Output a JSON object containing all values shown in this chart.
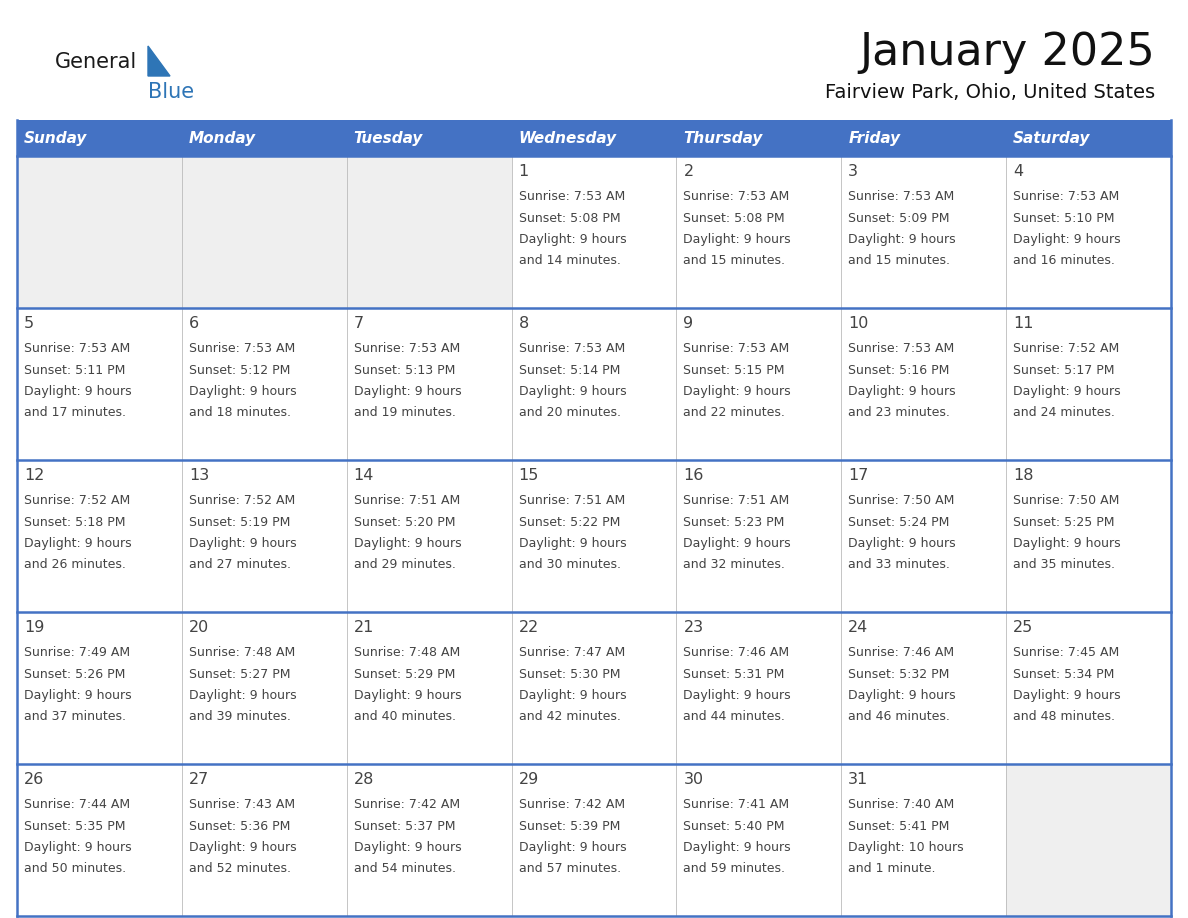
{
  "title": "January 2025",
  "subtitle": "Fairview Park, Ohio, United States",
  "days_of_week": [
    "Sunday",
    "Monday",
    "Tuesday",
    "Wednesday",
    "Thursday",
    "Friday",
    "Saturday"
  ],
  "header_bg": "#4472C4",
  "header_text_color": "#FFFFFF",
  "text_color": "#444444",
  "line_color": "#4472C4",
  "calendar": [
    [
      null,
      null,
      null,
      {
        "day": "1",
        "sunrise": "7:53 AM",
        "sunset": "5:08 PM",
        "daylight_line1": "Daylight: 9 hours",
        "daylight_line2": "and 14 minutes."
      },
      {
        "day": "2",
        "sunrise": "7:53 AM",
        "sunset": "5:08 PM",
        "daylight_line1": "Daylight: 9 hours",
        "daylight_line2": "and 15 minutes."
      },
      {
        "day": "3",
        "sunrise": "7:53 AM",
        "sunset": "5:09 PM",
        "daylight_line1": "Daylight: 9 hours",
        "daylight_line2": "and 15 minutes."
      },
      {
        "day": "4",
        "sunrise": "7:53 AM",
        "sunset": "5:10 PM",
        "daylight_line1": "Daylight: 9 hours",
        "daylight_line2": "and 16 minutes."
      }
    ],
    [
      {
        "day": "5",
        "sunrise": "7:53 AM",
        "sunset": "5:11 PM",
        "daylight_line1": "Daylight: 9 hours",
        "daylight_line2": "and 17 minutes."
      },
      {
        "day": "6",
        "sunrise": "7:53 AM",
        "sunset": "5:12 PM",
        "daylight_line1": "Daylight: 9 hours",
        "daylight_line2": "and 18 minutes."
      },
      {
        "day": "7",
        "sunrise": "7:53 AM",
        "sunset": "5:13 PM",
        "daylight_line1": "Daylight: 9 hours",
        "daylight_line2": "and 19 minutes."
      },
      {
        "day": "8",
        "sunrise": "7:53 AM",
        "sunset": "5:14 PM",
        "daylight_line1": "Daylight: 9 hours",
        "daylight_line2": "and 20 minutes."
      },
      {
        "day": "9",
        "sunrise": "7:53 AM",
        "sunset": "5:15 PM",
        "daylight_line1": "Daylight: 9 hours",
        "daylight_line2": "and 22 minutes."
      },
      {
        "day": "10",
        "sunrise": "7:53 AM",
        "sunset": "5:16 PM",
        "daylight_line1": "Daylight: 9 hours",
        "daylight_line2": "and 23 minutes."
      },
      {
        "day": "11",
        "sunrise": "7:52 AM",
        "sunset": "5:17 PM",
        "daylight_line1": "Daylight: 9 hours",
        "daylight_line2": "and 24 minutes."
      }
    ],
    [
      {
        "day": "12",
        "sunrise": "7:52 AM",
        "sunset": "5:18 PM",
        "daylight_line1": "Daylight: 9 hours",
        "daylight_line2": "and 26 minutes."
      },
      {
        "day": "13",
        "sunrise": "7:52 AM",
        "sunset": "5:19 PM",
        "daylight_line1": "Daylight: 9 hours",
        "daylight_line2": "and 27 minutes."
      },
      {
        "day": "14",
        "sunrise": "7:51 AM",
        "sunset": "5:20 PM",
        "daylight_line1": "Daylight: 9 hours",
        "daylight_line2": "and 29 minutes."
      },
      {
        "day": "15",
        "sunrise": "7:51 AM",
        "sunset": "5:22 PM",
        "daylight_line1": "Daylight: 9 hours",
        "daylight_line2": "and 30 minutes."
      },
      {
        "day": "16",
        "sunrise": "7:51 AM",
        "sunset": "5:23 PM",
        "daylight_line1": "Daylight: 9 hours",
        "daylight_line2": "and 32 minutes."
      },
      {
        "day": "17",
        "sunrise": "7:50 AM",
        "sunset": "5:24 PM",
        "daylight_line1": "Daylight: 9 hours",
        "daylight_line2": "and 33 minutes."
      },
      {
        "day": "18",
        "sunrise": "7:50 AM",
        "sunset": "5:25 PM",
        "daylight_line1": "Daylight: 9 hours",
        "daylight_line2": "and 35 minutes."
      }
    ],
    [
      {
        "day": "19",
        "sunrise": "7:49 AM",
        "sunset": "5:26 PM",
        "daylight_line1": "Daylight: 9 hours",
        "daylight_line2": "and 37 minutes."
      },
      {
        "day": "20",
        "sunrise": "7:48 AM",
        "sunset": "5:27 PM",
        "daylight_line1": "Daylight: 9 hours",
        "daylight_line2": "and 39 minutes."
      },
      {
        "day": "21",
        "sunrise": "7:48 AM",
        "sunset": "5:29 PM",
        "daylight_line1": "Daylight: 9 hours",
        "daylight_line2": "and 40 minutes."
      },
      {
        "day": "22",
        "sunrise": "7:47 AM",
        "sunset": "5:30 PM",
        "daylight_line1": "Daylight: 9 hours",
        "daylight_line2": "and 42 minutes."
      },
      {
        "day": "23",
        "sunrise": "7:46 AM",
        "sunset": "5:31 PM",
        "daylight_line1": "Daylight: 9 hours",
        "daylight_line2": "and 44 minutes."
      },
      {
        "day": "24",
        "sunrise": "7:46 AM",
        "sunset": "5:32 PM",
        "daylight_line1": "Daylight: 9 hours",
        "daylight_line2": "and 46 minutes."
      },
      {
        "day": "25",
        "sunrise": "7:45 AM",
        "sunset": "5:34 PM",
        "daylight_line1": "Daylight: 9 hours",
        "daylight_line2": "and 48 minutes."
      }
    ],
    [
      {
        "day": "26",
        "sunrise": "7:44 AM",
        "sunset": "5:35 PM",
        "daylight_line1": "Daylight: 9 hours",
        "daylight_line2": "and 50 minutes."
      },
      {
        "day": "27",
        "sunrise": "7:43 AM",
        "sunset": "5:36 PM",
        "daylight_line1": "Daylight: 9 hours",
        "daylight_line2": "and 52 minutes."
      },
      {
        "day": "28",
        "sunrise": "7:42 AM",
        "sunset": "5:37 PM",
        "daylight_line1": "Daylight: 9 hours",
        "daylight_line2": "and 54 minutes."
      },
      {
        "day": "29",
        "sunrise": "7:42 AM",
        "sunset": "5:39 PM",
        "daylight_line1": "Daylight: 9 hours",
        "daylight_line2": "and 57 minutes."
      },
      {
        "day": "30",
        "sunrise": "7:41 AM",
        "sunset": "5:40 PM",
        "daylight_line1": "Daylight: 9 hours",
        "daylight_line2": "and 59 minutes."
      },
      {
        "day": "31",
        "sunrise": "7:40 AM",
        "sunset": "5:41 PM",
        "daylight_line1": "Daylight: 10 hours",
        "daylight_line2": "and 1 minute."
      },
      null
    ]
  ]
}
